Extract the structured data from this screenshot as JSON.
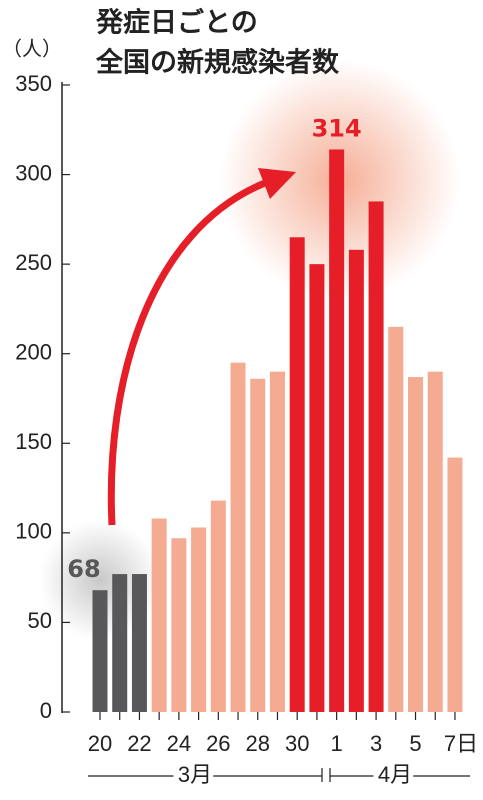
{
  "chart_data": {
    "type": "bar",
    "title_lines": [
      "発症日ごとの",
      "全国の新規感染者数"
    ],
    "y_unit": "（人）",
    "categories": [
      "20",
      null,
      "22",
      null,
      "24",
      null,
      "26",
      null,
      "28",
      null,
      "30",
      null,
      "1",
      null,
      "3",
      null,
      "5",
      null,
      "7日"
    ],
    "x_groups": [
      "3月",
      "4月"
    ],
    "values": [
      68,
      77,
      77,
      108,
      97,
      103,
      118,
      195,
      186,
      190,
      265,
      250,
      314,
      258,
      285,
      215,
      187,
      190,
      142
    ],
    "value_labels": [
      "68",
      null,
      null,
      null,
      null,
      null,
      null,
      null,
      null,
      null,
      null,
      null,
      "314",
      null,
      null,
      null,
      null,
      null,
      null
    ],
    "colors": [
      "#58585a",
      "#58585a",
      "#58585a",
      "#f4ab91",
      "#f4ab91",
      "#f4ab91",
      "#f4ab91",
      "#f4ab91",
      "#f4ab91",
      "#f4ab91",
      "#e61e28",
      "#e61e28",
      "#e61e28",
      "#e61e28",
      "#e61e28",
      "#f4ab91",
      "#f4ab91",
      "#f4ab91",
      "#f4ab91"
    ],
    "ylim": [
      0,
      350
    ],
    "yticks": [
      0,
      50,
      100,
      150,
      200,
      250,
      300,
      350
    ]
  }
}
